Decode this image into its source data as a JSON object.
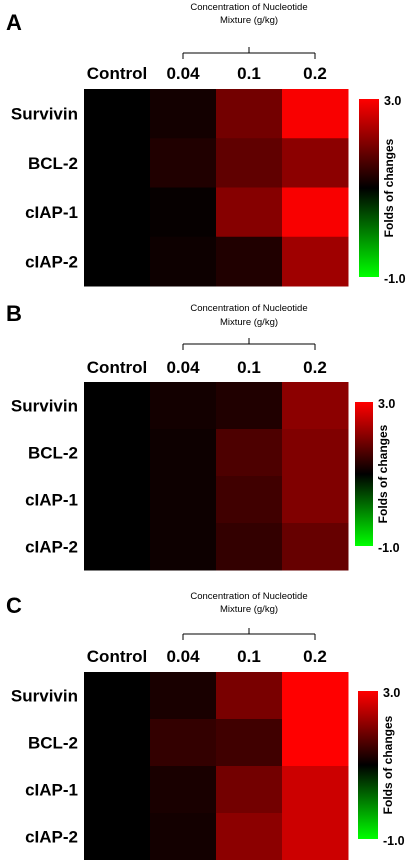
{
  "chart_data": [
    {
      "type": "heatmap",
      "panel_label": "A",
      "column_group_label": [
        "Concentration of Nucleotide",
        "Mixture (g/kg)"
      ],
      "columns": [
        "Control",
        "0.04",
        "0.1",
        "0.2"
      ],
      "rows": [
        "Survivin",
        "BCL-2",
        "cIAP-1",
        "cIAP-2"
      ],
      "values": [
        [
          1.0,
          1.15,
          1.9,
          2.95
        ],
        [
          1.0,
          1.25,
          1.75,
          2.1
        ],
        [
          1.0,
          1.05,
          2.05,
          2.95
        ],
        [
          1.0,
          1.1,
          1.25,
          2.25
        ]
      ],
      "colorbar": {
        "title": "Folds of changes",
        "max_label": "3.0",
        "min_label": "-1.0",
        "range": [
          -1.0,
          3.0
        ]
      }
    },
    {
      "type": "heatmap",
      "panel_label": "B",
      "column_group_label": [
        "Concentration of Nucleotide",
        "Mixture (g/kg)"
      ],
      "columns": [
        "Control",
        "0.04",
        "0.1",
        "0.2"
      ],
      "rows": [
        "Survivin",
        "BCL-2",
        "cIAP-1",
        "cIAP-2"
      ],
      "values": [
        [
          1.0,
          1.15,
          1.25,
          2.1
        ],
        [
          1.0,
          1.1,
          1.6,
          2.0
        ],
        [
          1.0,
          1.1,
          1.5,
          2.0
        ],
        [
          1.0,
          1.1,
          1.4,
          1.8
        ]
      ],
      "colorbar": {
        "title": "Folds of changes",
        "max_label": "3.0",
        "min_label": "-1.0",
        "range": [
          -1.0,
          3.0
        ]
      }
    },
    {
      "type": "heatmap",
      "panel_label": "C",
      "column_group_label": [
        "Concentration of Nucleotide",
        "Mixture (g/kg)"
      ],
      "columns": [
        "Control",
        "0.04",
        "0.1",
        "0.2"
      ],
      "rows": [
        "Survivin",
        "BCL-2",
        "cIAP-1",
        "cIAP-2"
      ],
      "values": [
        [
          1.0,
          1.2,
          1.95,
          3.0
        ],
        [
          1.0,
          1.4,
          1.5,
          3.0
        ],
        [
          1.0,
          1.2,
          1.9,
          2.6
        ],
        [
          1.0,
          1.15,
          2.1,
          2.6
        ]
      ],
      "colorbar": {
        "title": "Folds of changes",
        "max_label": "3.0",
        "min_label": "-1.0",
        "range": [
          -1.0,
          3.0
        ]
      }
    }
  ]
}
